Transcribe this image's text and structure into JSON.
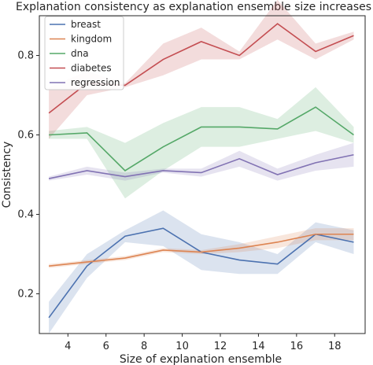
{
  "chart_data": {
    "type": "line",
    "title": "Explanation consistency as explanation ensemble size increases",
    "xlabel": "Size of explanation ensemble",
    "ylabel": "Consistency",
    "x": [
      3,
      5,
      7,
      9,
      11,
      13,
      15,
      17,
      19
    ],
    "xlim": [
      2.5,
      19.6
    ],
    "ylim": [
      0.1,
      0.9
    ],
    "xticks": [
      4,
      6,
      8,
      10,
      12,
      14,
      16,
      18
    ],
    "yticks": [
      0.2,
      0.4,
      0.6,
      0.8
    ],
    "grid": false,
    "legend_position": "top-left",
    "series": [
      {
        "name": "breast",
        "color": "#4c72b0",
        "values": [
          0.14,
          0.27,
          0.345,
          0.365,
          0.305,
          0.285,
          0.275,
          0.35,
          0.33
        ],
        "lower": [
          0.1,
          0.24,
          0.33,
          0.32,
          0.26,
          0.25,
          0.25,
          0.33,
          0.3
        ],
        "upper": [
          0.18,
          0.3,
          0.36,
          0.41,
          0.35,
          0.33,
          0.3,
          0.38,
          0.36
        ]
      },
      {
        "name": "kingdom",
        "color": "#dd8452",
        "values": [
          0.27,
          0.28,
          0.29,
          0.31,
          0.305,
          0.315,
          0.33,
          0.35,
          0.35
        ],
        "lower": [
          0.265,
          0.275,
          0.285,
          0.305,
          0.3,
          0.305,
          0.315,
          0.335,
          0.335
        ],
        "upper": [
          0.275,
          0.285,
          0.295,
          0.315,
          0.31,
          0.325,
          0.345,
          0.365,
          0.365
        ]
      },
      {
        "name": "dna",
        "color": "#55a868",
        "values": [
          0.6,
          0.605,
          0.51,
          0.57,
          0.62,
          0.62,
          0.615,
          0.67,
          0.6
        ],
        "lower": [
          0.59,
          0.59,
          0.44,
          0.51,
          0.57,
          0.57,
          0.59,
          0.61,
          0.58
        ],
        "upper": [
          0.61,
          0.62,
          0.58,
          0.63,
          0.67,
          0.67,
          0.64,
          0.72,
          0.62
        ]
      },
      {
        "name": "diabetes",
        "color": "#c44e52",
        "values": [
          0.655,
          0.73,
          0.725,
          0.79,
          0.835,
          0.8,
          0.88,
          0.81,
          0.85
        ],
        "lower": [
          0.59,
          0.7,
          0.72,
          0.75,
          0.79,
          0.79,
          0.84,
          0.79,
          0.84
        ],
        "upper": [
          0.72,
          0.76,
          0.73,
          0.83,
          0.87,
          0.81,
          0.94,
          0.83,
          0.86
        ]
      },
      {
        "name": "regression",
        "color": "#8172b3",
        "values": [
          0.49,
          0.51,
          0.495,
          0.51,
          0.505,
          0.54,
          0.5,
          0.53,
          0.55
        ],
        "lower": [
          0.485,
          0.5,
          0.485,
          0.505,
          0.495,
          0.52,
          0.485,
          0.51,
          0.52
        ],
        "upper": [
          0.495,
          0.52,
          0.505,
          0.515,
          0.515,
          0.56,
          0.515,
          0.55,
          0.58
        ]
      }
    ]
  }
}
